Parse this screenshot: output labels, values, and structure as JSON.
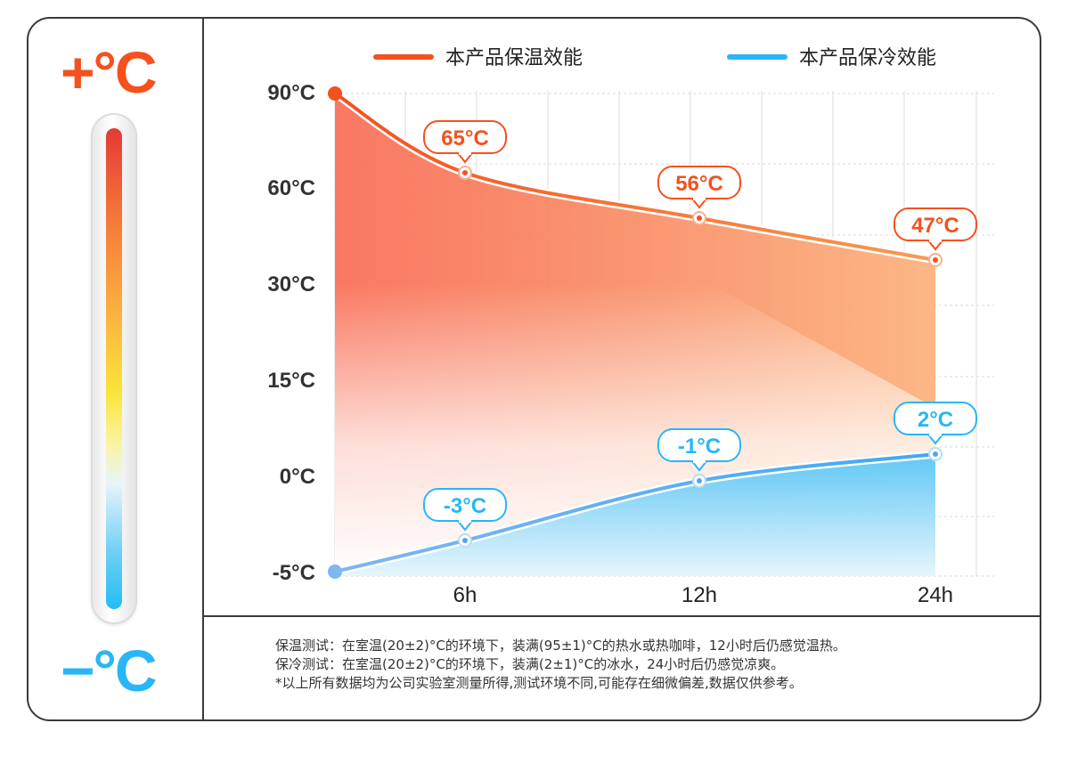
{
  "left_panel": {
    "hot_label": "+°C",
    "cold_label": "−°C"
  },
  "chart_data": {
    "type": "line",
    "x": [
      "0h",
      "6h",
      "12h",
      "24h"
    ],
    "x_tick_labels": [
      "6h",
      "12h",
      "24h"
    ],
    "y_tick_labels": [
      "90°C",
      "60°C",
      "30°C",
      "15°C",
      "0°C",
      "-5°C"
    ],
    "series": [
      {
        "name": "本产品保温效能",
        "color": "#f4511e",
        "values": [
          90,
          65,
          56,
          47
        ],
        "point_labels": [
          "",
          "65°C",
          "56°C",
          "47°C"
        ]
      },
      {
        "name": "本产品保冷效能",
        "color": "#29b6f6",
        "values": [
          -5,
          -3,
          -1,
          2
        ],
        "point_labels": [
          "",
          "-3°C",
          "-1°C",
          "2°C"
        ]
      }
    ],
    "legend_position": "top",
    "grid": true
  },
  "notes": [
    "保温测试：在室温(20±2)°C的环境下，装满(95±1)°C的热水或热咖啡，12小时后仍感觉温热。",
    "保冷测试：在室温(20±2)°C的环境下，装满(2±1)°C的冰水，24小时后仍感觉凉爽。",
    "*以上所有数据均为公司实验室测量所得,测试环境不同,可能存在细微偏差,数据仅供参考。"
  ],
  "colors": {
    "hot": "#f4511e",
    "cold": "#29b6f6",
    "border": "#3a3a3a"
  }
}
